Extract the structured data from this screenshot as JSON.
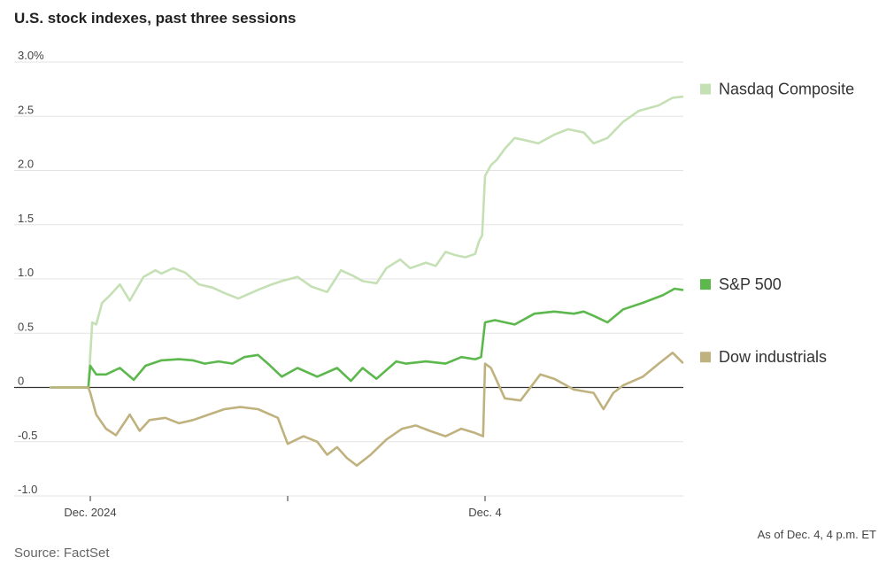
{
  "chart_data": {
    "type": "line",
    "title": "U.S. stock indexes, past three sessions",
    "unit": "%",
    "note": "As of Dec. 4, 4 p.m. ET",
    "source": "Source: FactSet",
    "ylim": [
      -1.0,
      3.0
    ],
    "yticks": [
      {
        "value": 3.0,
        "label": "3.0%"
      },
      {
        "value": 2.5,
        "label": "2.5"
      },
      {
        "value": 2.0,
        "label": "2.0"
      },
      {
        "value": 1.5,
        "label": "1.5"
      },
      {
        "value": 1.0,
        "label": "1.0"
      },
      {
        "value": 0.5,
        "label": "0.5"
      },
      {
        "value": 0,
        "label": "0"
      },
      {
        "value": -0.5,
        "label": "-0.5"
      },
      {
        "value": -1.0,
        "label": "-1.0"
      }
    ],
    "xticks": [
      {
        "position": 0,
        "label": "Dec. 2024"
      },
      {
        "position": 1,
        "label": ""
      },
      {
        "position": 2,
        "label": "Dec. 4"
      }
    ],
    "x_position_note_range": [
      -0.2,
      3.0
    ],
    "grid": true,
    "legend_placement": "right",
    "series": [
      {
        "name": "Nasdaq Composite",
        "color": "#c5e0b4",
        "x": [
          -0.2,
          -0.01,
          0.01,
          0.03,
          0.06,
          0.1,
          0.15,
          0.2,
          0.27,
          0.33,
          0.36,
          0.42,
          0.48,
          0.55,
          0.62,
          0.68,
          0.75,
          0.85,
          0.92,
          0.97,
          1.05,
          1.12,
          1.2,
          1.27,
          1.33,
          1.38,
          1.45,
          1.5,
          1.57,
          1.62,
          1.7,
          1.75,
          1.8,
          1.85,
          1.9,
          1.95,
          1.97,
          1.985,
          2.0,
          2.03,
          2.06,
          2.1,
          2.15,
          2.2,
          2.27,
          2.35,
          2.42,
          2.5,
          2.55,
          2.62,
          2.7,
          2.78,
          2.88,
          2.95,
          3.0
        ],
        "values": [
          0.0,
          0.0,
          0.6,
          0.58,
          0.78,
          0.85,
          0.95,
          0.8,
          1.02,
          1.08,
          1.05,
          1.1,
          1.06,
          0.95,
          0.92,
          0.87,
          0.82,
          0.9,
          0.95,
          0.98,
          1.02,
          0.93,
          0.88,
          1.08,
          1.03,
          0.98,
          0.96,
          1.1,
          1.18,
          1.1,
          1.15,
          1.12,
          1.25,
          1.22,
          1.2,
          1.23,
          1.35,
          1.4,
          1.95,
          2.05,
          2.1,
          2.2,
          2.3,
          2.28,
          2.25,
          2.33,
          2.38,
          2.35,
          2.25,
          2.3,
          2.45,
          2.55,
          2.6,
          2.67,
          2.68
        ]
      },
      {
        "name": "S&P 500",
        "color": "#5cb84d",
        "x": [
          -0.2,
          -0.01,
          0.0,
          0.03,
          0.08,
          0.15,
          0.22,
          0.28,
          0.36,
          0.45,
          0.52,
          0.58,
          0.65,
          0.72,
          0.78,
          0.85,
          0.9,
          0.97,
          1.05,
          1.15,
          1.25,
          1.32,
          1.38,
          1.45,
          1.55,
          1.6,
          1.7,
          1.8,
          1.88,
          1.95,
          1.98,
          2.0,
          2.05,
          2.15,
          2.25,
          2.35,
          2.45,
          2.5,
          2.55,
          2.62,
          2.7,
          2.8,
          2.9,
          2.96,
          3.0
        ],
        "values": [
          0.0,
          0.0,
          0.2,
          0.12,
          0.12,
          0.18,
          0.07,
          0.2,
          0.25,
          0.26,
          0.25,
          0.22,
          0.24,
          0.22,
          0.28,
          0.3,
          0.22,
          0.1,
          0.18,
          0.1,
          0.18,
          0.06,
          0.18,
          0.08,
          0.24,
          0.22,
          0.24,
          0.22,
          0.28,
          0.26,
          0.28,
          0.6,
          0.62,
          0.58,
          0.68,
          0.7,
          0.68,
          0.7,
          0.66,
          0.6,
          0.72,
          0.78,
          0.85,
          0.91,
          0.9
        ]
      },
      {
        "name": "Dow industrials",
        "color": "#bfb27e",
        "x": [
          -0.2,
          -0.01,
          0.0,
          0.03,
          0.08,
          0.13,
          0.2,
          0.25,
          0.3,
          0.38,
          0.45,
          0.52,
          0.6,
          0.68,
          0.76,
          0.85,
          0.95,
          1.0,
          1.08,
          1.15,
          1.2,
          1.25,
          1.3,
          1.35,
          1.42,
          1.5,
          1.58,
          1.65,
          1.72,
          1.8,
          1.88,
          1.95,
          1.99,
          2.0,
          2.03,
          2.1,
          2.18,
          2.28,
          2.35,
          2.45,
          2.55,
          2.6,
          2.65,
          2.7,
          2.8,
          2.88,
          2.95,
          3.0
        ],
        "values": [
          0.0,
          0.0,
          -0.05,
          -0.25,
          -0.38,
          -0.44,
          -0.25,
          -0.4,
          -0.3,
          -0.28,
          -0.33,
          -0.3,
          -0.25,
          -0.2,
          -0.18,
          -0.2,
          -0.28,
          -0.52,
          -0.45,
          -0.5,
          -0.62,
          -0.55,
          -0.65,
          -0.72,
          -0.62,
          -0.48,
          -0.38,
          -0.35,
          -0.4,
          -0.45,
          -0.38,
          -0.42,
          -0.45,
          0.22,
          0.18,
          -0.1,
          -0.12,
          0.12,
          0.08,
          -0.02,
          -0.05,
          -0.2,
          -0.05,
          0.02,
          0.1,
          0.22,
          0.32,
          0.23
        ]
      }
    ]
  }
}
